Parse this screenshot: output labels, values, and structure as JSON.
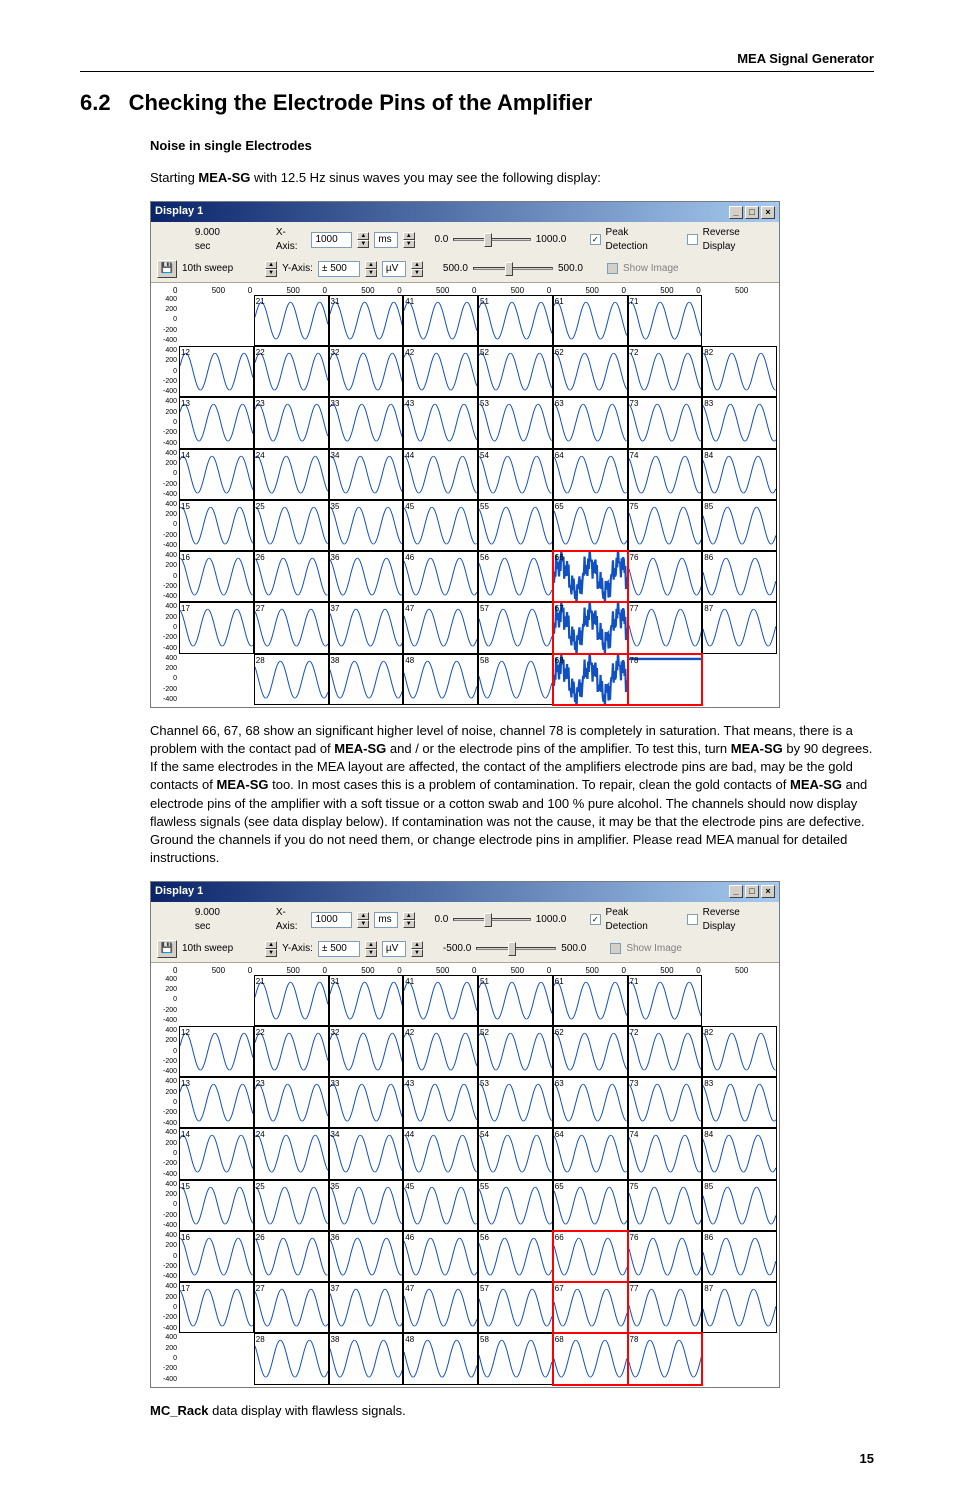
{
  "header": {
    "title": "MEA Signal Generator"
  },
  "section": {
    "number": "6.2",
    "title": "Checking the Electrode Pins of the Amplifier"
  },
  "sub1": "Noise in single Electrodes",
  "intro_parts": [
    "Starting ",
    "MEA-SG",
    " with 12.5 Hz sinus waves you may see the following display:"
  ],
  "para2_parts": [
    "Channel 66, 67, 68  show an significant higher level of noise, channel 78 is completely in saturation. That means, there is a problem with the contact pad of ",
    "MEA-SG",
    " and / or the electrode pins of the amplifier. To test this, turn ",
    "MEA-SG",
    " by 90 degrees. If the same electrodes in the MEA layout are affected, the contact of the amplifiers electrode pins are bad, may be the gold contacts of ",
    "MEA-SG",
    " too. In most cases this is a problem of contamination. To repair, clean the gold contacts of ",
    "MEA-SG",
    " and electrode pins of the amplifier with a soft tissue or a cotton swab and 100 % pure alcohol. The channels should now display flawless signals (see data display below). If contamination was not the cause, it may be that the electrode pins are defective. Ground the channels if you do not need them, or change electrode pins in amplifier. Please read MEA manual for detailed instructions."
  ],
  "caption_parts": [
    "MC_Rack",
    " data display with flawless signals."
  ],
  "page_number": "15",
  "display": {
    "title": "Display 1",
    "time_label": "9.000 sec",
    "sweep_label": "10th sweep",
    "xaxis_label": "X-Axis:",
    "xaxis_val": "1000",
    "xaxis_unit": "ms",
    "yaxis_label": "Y-Axis:",
    "yaxis_val": "± 500",
    "yaxis_unit": "µV",
    "slider1_left": "0.0",
    "slider1_right": "1000.0",
    "slider2_left_a": "500.0",
    "slider2_left_b": "-500.0",
    "slider2_right": "500.0",
    "peak_detection": "Peak Detection",
    "reverse_display": "Reverse Display",
    "show_image": "Show Image",
    "tick_vals": [
      "0",
      "500",
      "0",
      "500",
      "0",
      "500",
      "0",
      "500",
      "0",
      "500",
      "0",
      "500",
      "0",
      "500",
      "0",
      "500"
    ],
    "y_ticks": [
      "400",
      "200",
      "0",
      "-200",
      "-400"
    ]
  },
  "common": {
    "wave_color": "#1050c0",
    "noise_color": "#1050c0",
    "highlight_color": "#ff0000",
    "bg": "#ffffff"
  },
  "grid": {
    "rows": 8,
    "cols": 8,
    "corners_empty": [
      [
        0,
        0
      ],
      [
        0,
        7
      ],
      [
        7,
        0
      ],
      [
        7,
        7
      ]
    ],
    "labels_colmajor": true
  },
  "chart1": {
    "noisy_cells": [
      "66",
      "67",
      "68"
    ],
    "saturated_cells": [
      "78"
    ],
    "highlight_cells": [
      "66",
      "67",
      "68",
      "78"
    ]
  },
  "chart2": {
    "noisy_cells": [],
    "saturated_cells": [],
    "highlight_cells": [
      "66",
      "67",
      "68",
      "78"
    ]
  }
}
